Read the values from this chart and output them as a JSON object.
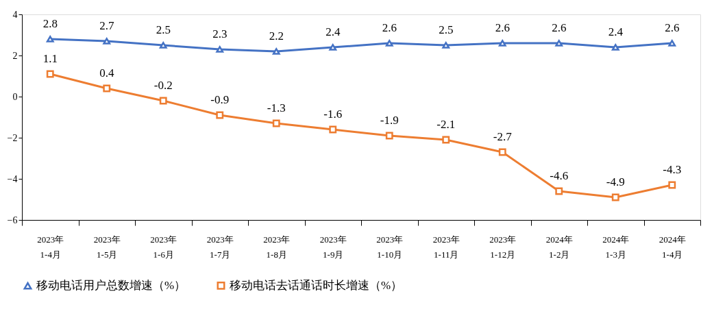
{
  "chart_data": {
    "type": "line",
    "categories": [
      "2023年\n1-4月",
      "2023年\n1-5月",
      "2023年\n1-6月",
      "2023年\n1-7月",
      "2023年\n1-8月",
      "2023年\n1-9月",
      "2023年\n1-10月",
      "2023年\n1-11月",
      "2023年\n1-12月",
      "2024年\n1-2月",
      "2024年\n1-3月",
      "2024年\n1-4月"
    ],
    "series": [
      {
        "name": "移动电话用户总数增速（%）",
        "color": "#4472c4",
        "marker": "triangle",
        "values": [
          2.8,
          2.7,
          2.5,
          2.3,
          2.2,
          2.4,
          2.6,
          2.5,
          2.6,
          2.6,
          2.4,
          2.6
        ]
      },
      {
        "name": "移动电话去话通话时长增速（%）",
        "color": "#ed7d31",
        "marker": "square",
        "values": [
          1.1,
          0.4,
          -0.2,
          -0.9,
          -1.3,
          -1.6,
          -1.9,
          -2.1,
          -2.7,
          -4.6,
          -4.9,
          -4.3
        ]
      }
    ],
    "ylim": [
      -6,
      4
    ],
    "yticks": [
      -6,
      -4,
      -2,
      0,
      2,
      4
    ],
    "data_labels": true,
    "grid": false,
    "legend": "bottom",
    "line_style": "solid"
  }
}
